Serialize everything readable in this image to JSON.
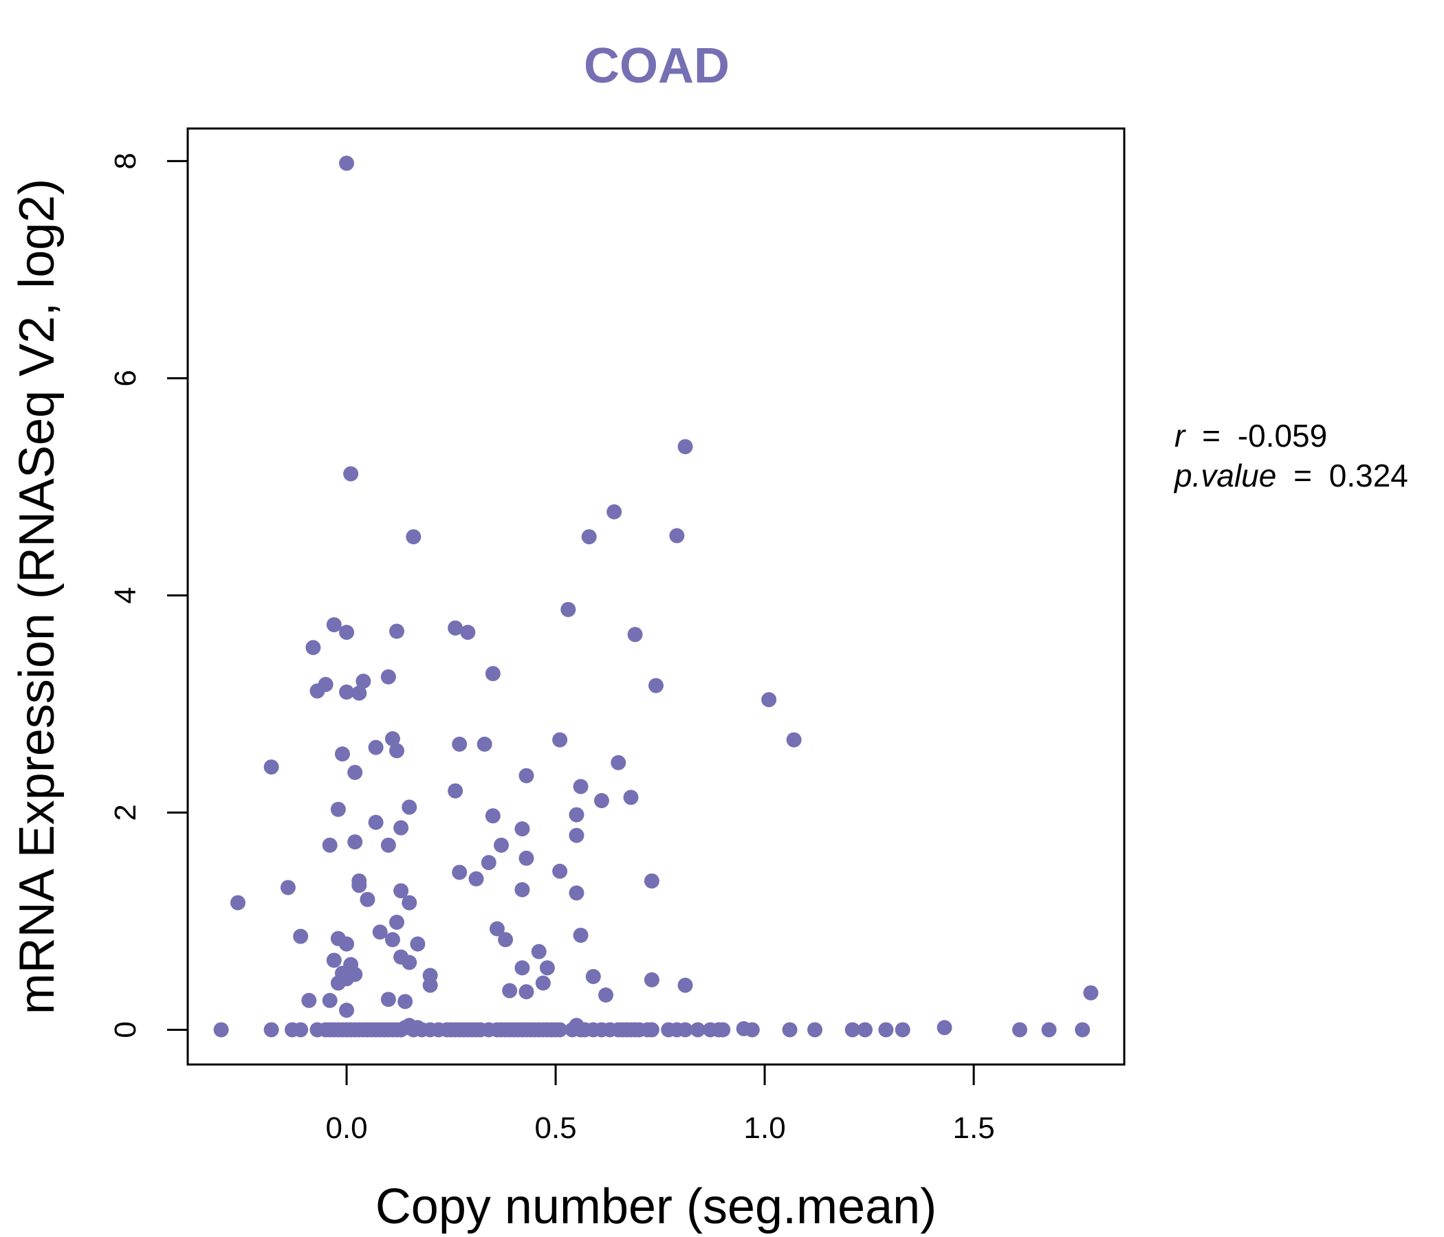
{
  "colors": {
    "point": "#7570b3",
    "title": "#7570b3",
    "axis": "#000000"
  },
  "chart_data": {
    "type": "scatter",
    "title": "COAD",
    "xlabel": "Copy number (seg.mean)",
    "ylabel": "mRNA Expression (RNASeq V2, log2)",
    "xlim": [
      -0.38,
      1.86
    ],
    "ylim": [
      -0.32,
      8.3
    ],
    "xticks": [
      0.0,
      0.5,
      1.0,
      1.5
    ],
    "xtick_labels": [
      "0.0",
      "0.5",
      "1.0",
      "1.5"
    ],
    "yticks": [
      0,
      2,
      4,
      6,
      8
    ],
    "ytick_labels": [
      "0",
      "2",
      "4",
      "6",
      "8"
    ],
    "grid": false,
    "annotations": {
      "r_label": "r",
      "r_value": "-0.059",
      "p_label": "p.value",
      "p_value": "0.324",
      "equals": "="
    },
    "points": [
      [
        0.0,
        7.98
      ],
      [
        0.01,
        5.12
      ],
      [
        0.81,
        5.37
      ],
      [
        0.64,
        4.77
      ],
      [
        0.58,
        4.54
      ],
      [
        0.79,
        4.55
      ],
      [
        0.16,
        4.54
      ],
      [
        0.53,
        3.87
      ],
      [
        -0.03,
        3.73
      ],
      [
        0.0,
        3.66
      ],
      [
        0.12,
        3.67
      ],
      [
        0.26,
        3.7
      ],
      [
        0.29,
        3.66
      ],
      [
        0.69,
        3.64
      ],
      [
        -0.08,
        3.52
      ],
      [
        0.35,
        3.28
      ],
      [
        0.1,
        3.25
      ],
      [
        0.04,
        3.21
      ],
      [
        -0.05,
        3.18
      ],
      [
        0.74,
        3.17
      ],
      [
        -0.07,
        3.12
      ],
      [
        0.0,
        3.11
      ],
      [
        0.03,
        3.1
      ],
      [
        1.01,
        3.04
      ],
      [
        1.07,
        2.67
      ],
      [
        0.51,
        2.67
      ],
      [
        0.11,
        2.68
      ],
      [
        0.27,
        2.63
      ],
      [
        0.33,
        2.63
      ],
      [
        0.07,
        2.6
      ],
      [
        0.12,
        2.57
      ],
      [
        -0.01,
        2.54
      ],
      [
        -0.18,
        2.42
      ],
      [
        0.02,
        2.37
      ],
      [
        0.43,
        2.34
      ],
      [
        0.65,
        2.46
      ],
      [
        0.56,
        2.24
      ],
      [
        0.26,
        2.2
      ],
      [
        0.68,
        2.14
      ],
      [
        0.61,
        2.11
      ],
      [
        0.15,
        2.05
      ],
      [
        -0.02,
        2.03
      ],
      [
        0.55,
        1.98
      ],
      [
        0.35,
        1.97
      ],
      [
        0.07,
        1.91
      ],
      [
        0.13,
        1.86
      ],
      [
        0.42,
        1.85
      ],
      [
        0.55,
        1.79
      ],
      [
        0.02,
        1.73
      ],
      [
        -0.04,
        1.7
      ],
      [
        0.1,
        1.7
      ],
      [
        0.37,
        1.7
      ],
      [
        0.43,
        1.58
      ],
      [
        0.34,
        1.54
      ],
      [
        0.51,
        1.46
      ],
      [
        0.27,
        1.45
      ],
      [
        0.31,
        1.39
      ],
      [
        0.73,
        1.37
      ],
      [
        0.03,
        1.37
      ],
      [
        0.03,
        1.33
      ],
      [
        -0.14,
        1.31
      ],
      [
        0.42,
        1.29
      ],
      [
        0.13,
        1.28
      ],
      [
        0.55,
        1.26
      ],
      [
        0.05,
        1.2
      ],
      [
        -0.26,
        1.17
      ],
      [
        0.15,
        1.17
      ],
      [
        0.12,
        0.99
      ],
      [
        0.36,
        0.93
      ],
      [
        0.08,
        0.9
      ],
      [
        0.11,
        0.83
      ],
      [
        0.38,
        0.83
      ],
      [
        -0.11,
        0.86
      ],
      [
        0.56,
        0.87
      ],
      [
        -0.02,
        0.84
      ],
      [
        0.0,
        0.79
      ],
      [
        0.17,
        0.79
      ],
      [
        0.46,
        0.72
      ],
      [
        0.13,
        0.67
      ],
      [
        -0.03,
        0.64
      ],
      [
        0.15,
        0.62
      ],
      [
        0.01,
        0.6
      ],
      [
        0.42,
        0.57
      ],
      [
        0.48,
        0.57
      ],
      [
        -0.01,
        0.52
      ],
      [
        0.02,
        0.51
      ],
      [
        0.2,
        0.5
      ],
      [
        0.59,
        0.49
      ],
      [
        0.0,
        0.47
      ],
      [
        0.73,
        0.46
      ],
      [
        -0.02,
        0.43
      ],
      [
        0.47,
        0.43
      ],
      [
        0.81,
        0.41
      ],
      [
        0.2,
        0.41
      ],
      [
        0.39,
        0.36
      ],
      [
        0.43,
        0.35
      ],
      [
        1.78,
        0.34
      ],
      [
        0.62,
        0.32
      ],
      [
        -0.09,
        0.27
      ],
      [
        0.1,
        0.28
      ],
      [
        -0.04,
        0.27
      ],
      [
        0.14,
        0.26
      ],
      [
        0.0,
        0.18
      ],
      [
        -0.3,
        0.0
      ],
      [
        -0.18,
        0.0
      ],
      [
        -0.13,
        0.0
      ],
      [
        -0.11,
        0.0
      ],
      [
        -0.07,
        0.0
      ],
      [
        -0.05,
        0.0
      ],
      [
        -0.04,
        0.0
      ],
      [
        -0.03,
        0.0
      ],
      [
        -0.02,
        0.0
      ],
      [
        -0.01,
        0.0
      ],
      [
        0.0,
        0.0
      ],
      [
        0.01,
        0.0
      ],
      [
        0.02,
        0.0
      ],
      [
        0.03,
        0.0
      ],
      [
        0.04,
        0.0
      ],
      [
        0.05,
        0.0
      ],
      [
        0.06,
        0.0
      ],
      [
        0.07,
        0.0
      ],
      [
        0.08,
        0.0
      ],
      [
        0.09,
        0.0
      ],
      [
        0.1,
        0.0
      ],
      [
        0.11,
        0.0
      ],
      [
        0.12,
        0.0
      ],
      [
        0.13,
        0.0
      ],
      [
        0.14,
        0.02
      ],
      [
        0.15,
        0.04
      ],
      [
        0.16,
        0.0
      ],
      [
        0.17,
        0.02
      ],
      [
        0.18,
        0.0
      ],
      [
        0.2,
        0.0
      ],
      [
        0.22,
        0.0
      ],
      [
        0.24,
        0.0
      ],
      [
        0.25,
        0.0
      ],
      [
        0.26,
        0.0
      ],
      [
        0.27,
        0.0
      ],
      [
        0.28,
        0.0
      ],
      [
        0.29,
        0.0
      ],
      [
        0.3,
        0.0
      ],
      [
        0.31,
        0.0
      ],
      [
        0.32,
        0.0
      ],
      [
        0.34,
        0.0
      ],
      [
        0.36,
        0.0
      ],
      [
        0.37,
        0.0
      ],
      [
        0.38,
        0.0
      ],
      [
        0.39,
        0.0
      ],
      [
        0.4,
        0.0
      ],
      [
        0.41,
        0.0
      ],
      [
        0.42,
        0.0
      ],
      [
        0.43,
        0.0
      ],
      [
        0.44,
        0.0
      ],
      [
        0.45,
        0.0
      ],
      [
        0.46,
        0.0
      ],
      [
        0.47,
        0.0
      ],
      [
        0.48,
        0.0
      ],
      [
        0.49,
        0.0
      ],
      [
        0.5,
        0.0
      ],
      [
        0.51,
        0.0
      ],
      [
        0.54,
        0.0
      ],
      [
        0.55,
        0.04
      ],
      [
        0.56,
        0.0
      ],
      [
        0.57,
        0.0
      ],
      [
        0.59,
        0.0
      ],
      [
        0.61,
        0.0
      ],
      [
        0.63,
        0.0
      ],
      [
        0.65,
        0.0
      ],
      [
        0.66,
        0.0
      ],
      [
        0.67,
        0.0
      ],
      [
        0.68,
        0.0
      ],
      [
        0.69,
        0.0
      ],
      [
        0.7,
        0.0
      ],
      [
        0.72,
        0.0
      ],
      [
        0.73,
        0.0
      ],
      [
        0.77,
        0.0
      ],
      [
        0.79,
        0.0
      ],
      [
        0.81,
        0.0
      ],
      [
        0.84,
        0.0
      ],
      [
        0.87,
        0.0
      ],
      [
        0.89,
        0.0
      ],
      [
        0.9,
        0.0
      ],
      [
        0.95,
        0.01
      ],
      [
        0.97,
        0.0
      ],
      [
        1.06,
        0.0
      ],
      [
        1.12,
        0.0
      ],
      [
        1.21,
        0.0
      ],
      [
        1.24,
        0.0
      ],
      [
        1.29,
        0.0
      ],
      [
        1.33,
        0.0
      ],
      [
        1.43,
        0.02
      ],
      [
        1.61,
        0.0
      ],
      [
        1.68,
        0.0
      ],
      [
        1.76,
        0.0
      ]
    ]
  }
}
